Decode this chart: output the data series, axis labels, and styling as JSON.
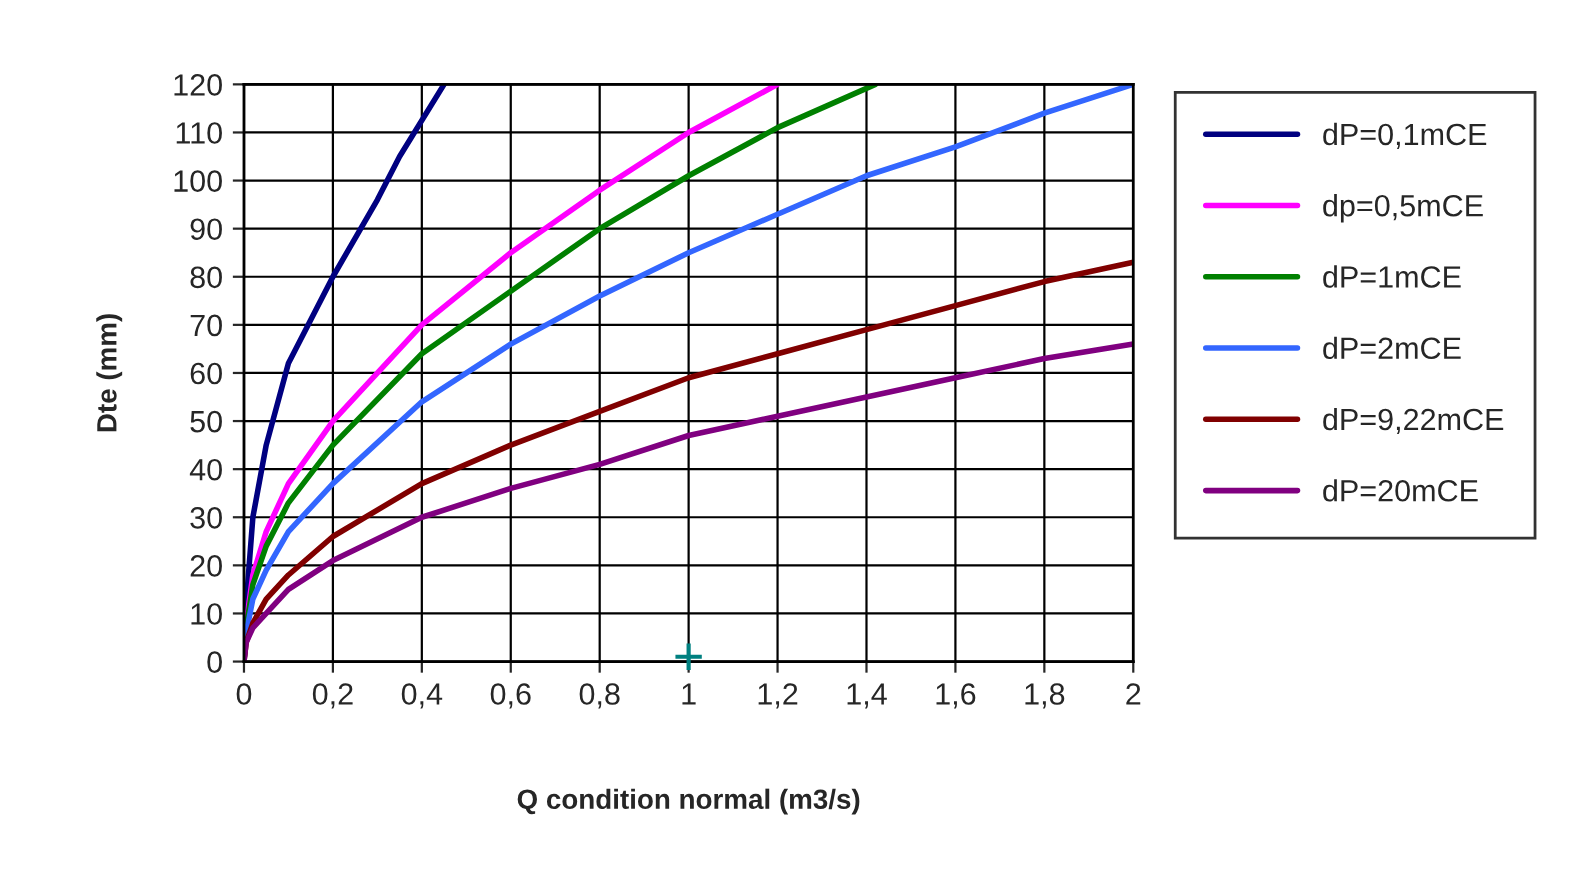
{
  "chart_data": {
    "type": "line",
    "xlabel": "Q condition normal (m3/s)",
    "ylabel": "Dte (mm)",
    "xlim": [
      0,
      2
    ],
    "ylim": [
      0,
      120
    ],
    "xticks": [
      0,
      {
        "value": 0.2,
        "label": "0,2"
      },
      {
        "value": 0.4,
        "label": "0,4"
      },
      {
        "value": 0.6,
        "label": "0,6"
      },
      {
        "value": 0.8,
        "label": "0,8"
      },
      1,
      {
        "value": 1.2,
        "label": "1,2"
      },
      {
        "value": 1.4,
        "label": "1,4"
      },
      {
        "value": 1.6,
        "label": "1,6"
      },
      {
        "value": 1.8,
        "label": "1,8"
      },
      2
    ],
    "yticks": [
      0,
      10,
      20,
      30,
      40,
      50,
      60,
      70,
      80,
      90,
      100,
      110,
      120
    ],
    "grid": true,
    "legend": "right",
    "marker": "none",
    "line_style": "solid",
    "series": [
      {
        "name": "dP=0,1mCE",
        "color": "#000080",
        "x": [
          0,
          0.005,
          0.02,
          0.05,
          0.1,
          0.2,
          0.3,
          0.35,
          0.45
        ],
        "values": [
          0,
          12,
          30,
          45,
          62,
          80,
          96,
          105,
          120
        ]
      },
      {
        "name": "dp=0,5mCE",
        "color": "#ff00ff",
        "x": [
          0,
          0.005,
          0.02,
          0.05,
          0.1,
          0.2,
          0.4,
          0.6,
          0.8,
          1.0,
          1.2
        ],
        "values": [
          0,
          8,
          18,
          27,
          37,
          50,
          70,
          85,
          98,
          110,
          120
        ]
      },
      {
        "name": "dP=1mCE",
        "color": "#008000",
        "x": [
          0,
          0.005,
          0.02,
          0.05,
          0.1,
          0.2,
          0.4,
          0.6,
          0.8,
          1.0,
          1.2,
          1.42
        ],
        "values": [
          0,
          7,
          16,
          24,
          33,
          45,
          64,
          77,
          90,
          101,
          111,
          120
        ]
      },
      {
        "name": "dP=2mCE",
        "color": "#3366ff",
        "x": [
          0,
          0.005,
          0.02,
          0.05,
          0.1,
          0.2,
          0.4,
          0.6,
          0.8,
          1.0,
          1.2,
          1.4,
          1.6,
          1.8,
          2.0
        ],
        "values": [
          0,
          6,
          13,
          19,
          27,
          37,
          54,
          66,
          76,
          85,
          93,
          101,
          107,
          114,
          120
        ]
      },
      {
        "name": "dP=9,22mCE",
        "color": "#800000",
        "x": [
          0,
          0.005,
          0.02,
          0.05,
          0.1,
          0.2,
          0.4,
          0.6,
          0.8,
          1.0,
          1.2,
          1.4,
          1.6,
          1.8,
          2.0
        ],
        "values": [
          0,
          4,
          8,
          13,
          18,
          26,
          37,
          45,
          52,
          59,
          64,
          69,
          74,
          79,
          83
        ]
      },
      {
        "name": "dP=20mCE",
        "color": "#800080",
        "x": [
          0,
          0.005,
          0.02,
          0.05,
          0.1,
          0.2,
          0.4,
          0.6,
          0.8,
          1.0,
          1.2,
          1.4,
          1.6,
          1.8,
          2.0
        ],
        "values": [
          0,
          4,
          7,
          10,
          15,
          21,
          30,
          36,
          41,
          47,
          51,
          55,
          59,
          63,
          66
        ]
      },
      {
        "type": "scatter",
        "marker": "cross",
        "color": "#008080",
        "x": [
          1
        ],
        "values": [
          1
        ]
      }
    ]
  }
}
